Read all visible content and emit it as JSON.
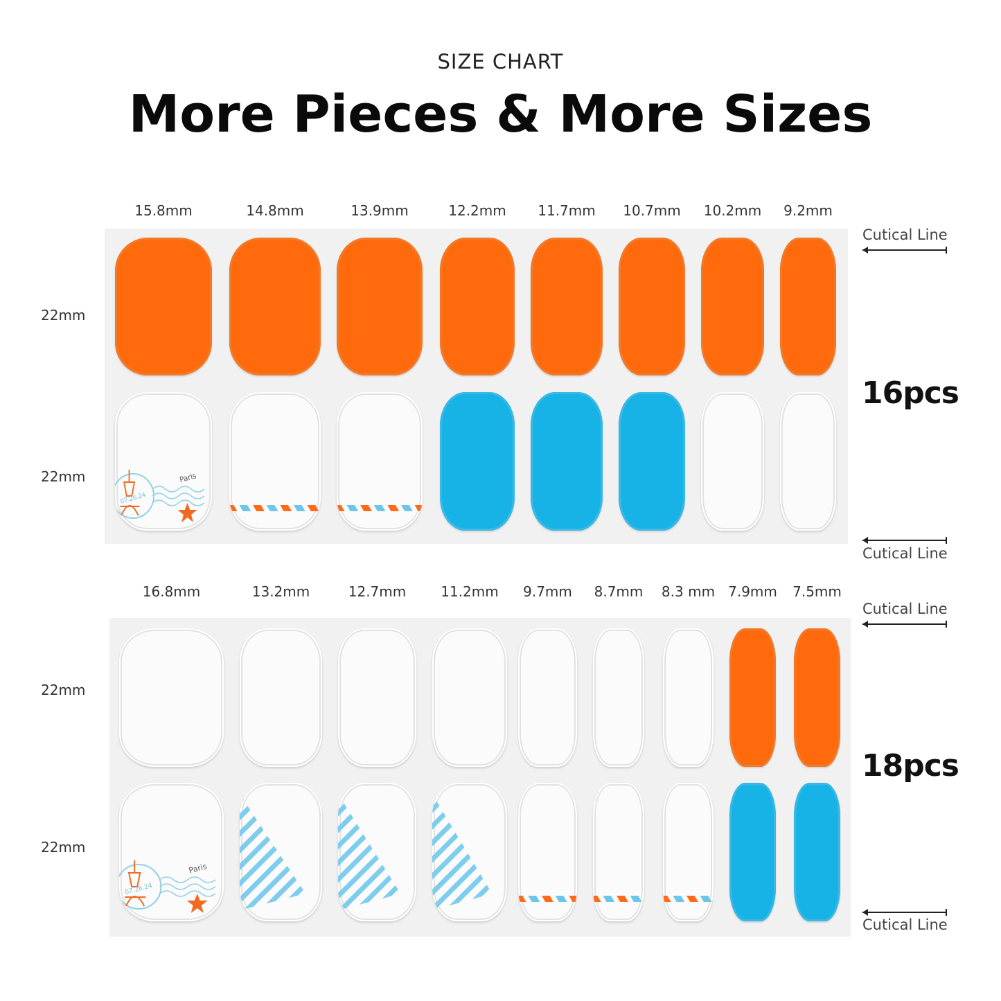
{
  "header": {
    "eyebrow": "SIZE CHART",
    "title": "More Pieces & More Sizes"
  },
  "colors": {
    "orange": "#ff6a0d",
    "blue": "#17b3e6",
    "white": "#fbfbfb",
    "sheet": "#f1f1f1"
  },
  "cuticle_label": "Cutical Line",
  "stamp": {
    "city": "Paris",
    "date": "07.26.24"
  },
  "sheets": [
    {
      "count_label": "16pcs",
      "widths": [
        "15.8mm",
        "14.8mm",
        "13.9mm",
        "12.2mm",
        "11.7mm",
        "10.7mm",
        "10.2mm",
        "9.2mm"
      ],
      "row_heights": [
        "22mm",
        "22mm"
      ],
      "rows": [
        [
          "orange",
          "orange",
          "orange",
          "orange",
          "orange",
          "orange",
          "orange",
          "orange"
        ],
        [
          "stamp",
          "airmail",
          "airmail",
          "blue",
          "blue",
          "blue",
          "white",
          "white"
        ]
      ]
    },
    {
      "count_label": "18pcs",
      "widths": [
        "16.8mm",
        "13.2mm",
        "12.7mm",
        "11.2mm",
        "9.7mm",
        "8.7mm",
        "8.3 mm",
        "7.9mm",
        "7.5mm"
      ],
      "row_heights": [
        "22mm",
        "22mm"
      ],
      "rows": [
        [
          "white",
          "white",
          "white",
          "white",
          "white",
          "white",
          "white",
          "orange",
          "orange"
        ],
        [
          "stamp",
          "diagonal-stripes",
          "diagonal-stripes",
          "diagonal-stripes",
          "airmail",
          "airmail",
          "airmail",
          "blue",
          "blue"
        ]
      ]
    }
  ]
}
